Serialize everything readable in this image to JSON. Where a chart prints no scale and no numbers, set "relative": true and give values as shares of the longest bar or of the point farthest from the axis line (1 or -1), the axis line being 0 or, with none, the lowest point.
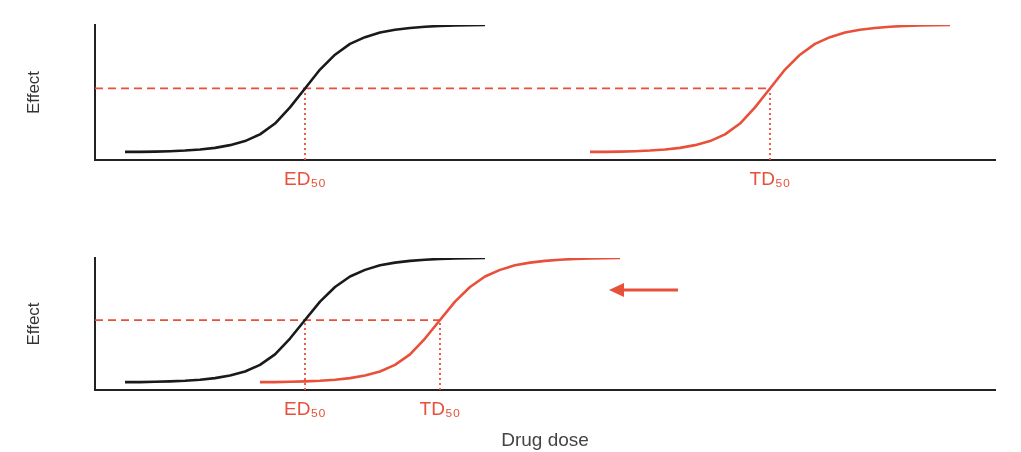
{
  "chart_data": [
    {
      "type": "line",
      "ylabel": "Effect",
      "relative": true,
      "tick_labels": "x",
      "grid": false,
      "legend": false,
      "marker": "none",
      "line_style": "solid",
      "categories": [
        null,
        null,
        null,
        null,
        null,
        null,
        null,
        null,
        null,
        null,
        null,
        null,
        null,
        null,
        "ED₅₀",
        null,
        null,
        null,
        null,
        null,
        null,
        null,
        null,
        null,
        null,
        null,
        null,
        null,
        null,
        null,
        null,
        null,
        null,
        null,
        null,
        null,
        null,
        null,
        null,
        null,
        null,
        null,
        null,
        null,
        null,
        "TD₅₀",
        null,
        null,
        null,
        null,
        null,
        null,
        null,
        null,
        null,
        null,
        null,
        null,
        null,
        null,
        null
      ],
      "series": [
        {
          "color": "#1a1a1a",
          "values": [
            null,
            null,
            0.06,
            0.06,
            0.062,
            0.065,
            0.07,
            0.078,
            0.09,
            0.11,
            0.14,
            0.19,
            0.27,
            0.39,
            0.53,
            0.67,
            0.78,
            0.86,
            0.91,
            0.945,
            0.965,
            0.978,
            0.987,
            0.993,
            0.997,
            0.999,
            1,
            null,
            null,
            null,
            null,
            null,
            null,
            null,
            null,
            null,
            null,
            null,
            null,
            null,
            null,
            null,
            null,
            null,
            null,
            null,
            null,
            null,
            null,
            null,
            null,
            null,
            null,
            null,
            null,
            null,
            null,
            null,
            null,
            null,
            null
          ]
        },
        {
          "color": "#e8503a",
          "values": [
            null,
            null,
            null,
            null,
            null,
            null,
            null,
            null,
            null,
            null,
            null,
            null,
            null,
            null,
            null,
            null,
            null,
            null,
            null,
            null,
            null,
            null,
            null,
            null,
            null,
            null,
            null,
            null,
            null,
            null,
            null,
            null,
            null,
            0.06,
            0.06,
            0.062,
            0.065,
            0.07,
            0.078,
            0.09,
            0.11,
            0.14,
            0.19,
            0.27,
            0.39,
            0.53,
            0.67,
            0.78,
            0.86,
            0.91,
            0.945,
            0.965,
            0.978,
            0.987,
            0.993,
            0.997,
            0.999,
            1,
            null,
            null,
            null
          ]
        },
        {
          "color": "#e8503a",
          "line_style": "dashed",
          "values": [
            0.53,
            0.53,
            0.53,
            0.53,
            0.53,
            0.53,
            0.53,
            0.53,
            0.53,
            0.53,
            0.53,
            0.53,
            0.53,
            0.53,
            0.53,
            0.53,
            0.53,
            0.53,
            0.53,
            0.53,
            0.53,
            0.53,
            0.53,
            0.53,
            0.53,
            0.53,
            0.53,
            0.53,
            0.53,
            0.53,
            0.53,
            0.53,
            0.53,
            0.53,
            0.53,
            0.53,
            0.53,
            0.53,
            0.53,
            0.53,
            0.53,
            0.53,
            0.53,
            0.53,
            0.53,
            0.53,
            null,
            null,
            null,
            null,
            null,
            null,
            null,
            null,
            null,
            null,
            null,
            null,
            null,
            null,
            null
          ]
        }
      ],
      "ref_lines": [
        {
          "axis": "x",
          "value": "ED₅₀",
          "color": "#e8503a",
          "line_style": "dotted"
        },
        {
          "axis": "x",
          "value": "TD₅₀",
          "color": "#e8503a",
          "line_style": "dotted"
        }
      ]
    },
    {
      "type": "line",
      "ylabel": "Effect",
      "xlabel": "Drug dose",
      "relative": true,
      "tick_labels": "x",
      "grid": false,
      "legend": false,
      "marker": "none",
      "line_style": "solid",
      "categories": [
        null,
        null,
        null,
        null,
        null,
        null,
        null,
        null,
        null,
        null,
        null,
        null,
        null,
        null,
        "ED₅₀",
        null,
        null,
        null,
        null,
        null,
        null,
        null,
        null,
        "TD₅₀",
        null,
        null,
        null,
        null,
        null,
        null,
        null,
        null,
        null,
        null,
        null,
        null,
        null,
        null,
        null,
        null,
        null,
        null,
        null,
        null,
        null,
        null,
        null,
        null,
        null,
        null,
        null,
        null,
        null,
        null,
        null,
        null,
        null,
        null,
        null,
        null,
        null
      ],
      "series": [
        {
          "color": "#1a1a1a",
          "values": [
            null,
            null,
            0.06,
            0.06,
            0.062,
            0.065,
            0.07,
            0.078,
            0.09,
            0.11,
            0.14,
            0.19,
            0.27,
            0.39,
            0.53,
            0.67,
            0.78,
            0.86,
            0.91,
            0.945,
            0.965,
            0.978,
            0.987,
            0.993,
            0.997,
            0.999,
            1,
            null,
            null,
            null,
            null,
            null,
            null,
            null,
            null,
            null,
            null,
            null,
            null,
            null,
            null,
            null,
            null,
            null,
            null,
            null,
            null,
            null,
            null,
            null,
            null,
            null,
            null,
            null,
            null,
            null,
            null,
            null,
            null,
            null,
            null
          ]
        },
        {
          "color": "#e8503a",
          "values": [
            null,
            null,
            null,
            null,
            null,
            null,
            null,
            null,
            null,
            null,
            null,
            0.06,
            0.06,
            0.062,
            0.065,
            0.07,
            0.078,
            0.09,
            0.11,
            0.14,
            0.19,
            0.27,
            0.39,
            0.53,
            0.67,
            0.78,
            0.86,
            0.91,
            0.945,
            0.965,
            0.978,
            0.987,
            0.993,
            0.997,
            0.999,
            1,
            null,
            null,
            null,
            null,
            null,
            null,
            null,
            null,
            null,
            null,
            null,
            null,
            null,
            null,
            null,
            null,
            null,
            null,
            null,
            null,
            null,
            null,
            null,
            null,
            null
          ]
        },
        {
          "color": "#e8503a",
          "line_style": "dashed",
          "values": [
            0.53,
            0.53,
            0.53,
            0.53,
            0.53,
            0.53,
            0.53,
            0.53,
            0.53,
            0.53,
            0.53,
            0.53,
            0.53,
            0.53,
            0.53,
            0.53,
            0.53,
            0.53,
            0.53,
            0.53,
            0.53,
            0.53,
            0.53,
            0.53,
            null,
            null,
            null,
            null,
            null,
            null,
            null,
            null,
            null,
            null,
            null,
            null,
            null,
            null,
            null,
            null,
            null,
            null,
            null,
            null,
            null,
            null,
            null,
            null,
            null,
            null,
            null,
            null,
            null,
            null,
            null,
            null,
            null,
            null,
            null,
            null,
            null
          ]
        }
      ],
      "ref_lines": [
        {
          "axis": "x",
          "value": "ED₅₀",
          "color": "#e8503a",
          "line_style": "dotted"
        },
        {
          "axis": "x",
          "value": "TD₅₀",
          "color": "#e8503a",
          "line_style": "dotted"
        }
      ]
    }
  ]
}
